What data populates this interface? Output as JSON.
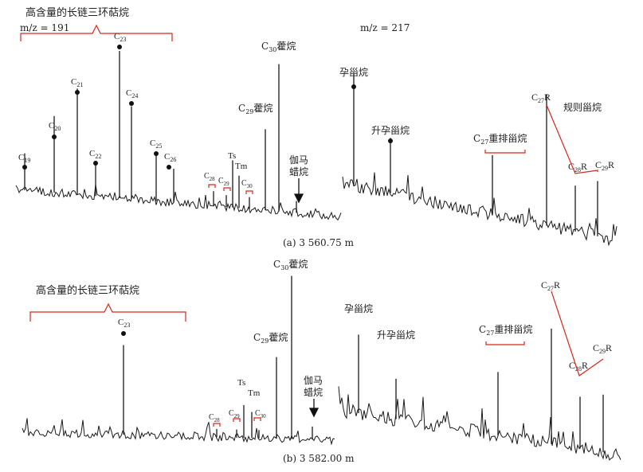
{
  "figure": {
    "panel_a_caption": "(a) 3 560.75 m",
    "panel_b_caption": "(b) 3 582.00 m",
    "mz_191": "m/z = 191",
    "mz_217": "m/z = 217",
    "tricyclic_bracket": "高含量的长链三环萜烷",
    "c30_hopane": "C30藿烷",
    "c29_hopane": "C29藿烷",
    "gammacerane": "伽马蜡烷",
    "pregnane": "孕甾烷",
    "homopregnane": "升孕甾烷",
    "diasterane": "C27重排甾烷",
    "regular_sterane": "规则甾烷"
  },
  "colors": {
    "trace": "#1a1a1a",
    "annotation": "#d9261c"
  },
  "chart_data": [
    {
      "type": "line",
      "title": "(a) 3 560.75 m, m/z = 191",
      "peaks": [
        {
          "label": "C19",
          "value": 0.25
        },
        {
          "label": "C20",
          "value": 0.52
        },
        {
          "label": "C21",
          "value": 0.72
        },
        {
          "label": "C22",
          "value": 0.24
        },
        {
          "label": "C23",
          "value": 1.0
        },
        {
          "label": "C24",
          "value": 0.63
        },
        {
          "label": "C25",
          "value": 0.33
        },
        {
          "label": "C26",
          "value": 0.23
        },
        {
          "label": "C28",
          "value": 0.1
        },
        {
          "label": "C29",
          "value": 0.08
        },
        {
          "label": "Ts",
          "value": 0.32
        },
        {
          "label": "Tm",
          "value": 0.22
        },
        {
          "label": "C30",
          "value": 0.08
        },
        {
          "label": "C29藿烷",
          "value": 0.55
        },
        {
          "label": "C30藿烷",
          "value": 1.0
        },
        {
          "label": "伽马蜡烷",
          "value": 0.08
        }
      ]
    },
    {
      "type": "line",
      "title": "(a) 3 560.75 m, m/z = 217",
      "peaks": [
        {
          "label": "孕甾烷",
          "value": 0.85
        },
        {
          "label": "升孕甾烷",
          "value": 0.42
        },
        {
          "label": "C27重排甾烷",
          "value": 0.45
        },
        {
          "label": "C27R",
          "value": 1.0
        },
        {
          "label": "C28R",
          "value": 0.35
        },
        {
          "label": "C29R",
          "value": 0.42
        }
      ]
    },
    {
      "type": "line",
      "title": "(b) 3 582.00 m, m/z = 191",
      "peaks": [
        {
          "label": "C23",
          "value": 0.55
        },
        {
          "label": "C28",
          "value": 0.05
        },
        {
          "label": "C29",
          "value": 0.05
        },
        {
          "label": "Ts",
          "value": 0.2
        },
        {
          "label": "Tm",
          "value": 0.16
        },
        {
          "label": "C30",
          "value": 0.05
        },
        {
          "label": "C29藿烷",
          "value": 0.5
        },
        {
          "label": "C30藿烷",
          "value": 1.0
        },
        {
          "label": "伽马蜡烷",
          "value": 0.08
        }
      ]
    },
    {
      "type": "line",
      "title": "(b) 3 582.00 m, m/z = 217",
      "peaks": [
        {
          "label": "孕甾烷",
          "value": 0.68
        },
        {
          "label": "升孕甾烷",
          "value": 0.35
        },
        {
          "label": "C27重排甾烷",
          "value": 0.55
        },
        {
          "label": "C27R",
          "value": 1.0
        },
        {
          "label": "C28R",
          "value": 0.45
        },
        {
          "label": "C29R",
          "value": 0.5
        }
      ]
    }
  ]
}
